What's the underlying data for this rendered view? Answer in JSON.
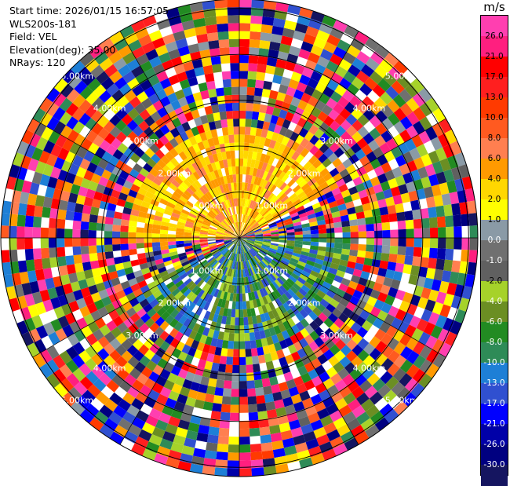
{
  "info": {
    "start_time": "Start time: 2026/01/15 16:57:05",
    "instrument": "WLS200s-181",
    "field": "Field: VEL",
    "elevation": "Elevation(deg): 35.00",
    "nrays": "NRays: 120"
  },
  "colorbar": {
    "unit": "m/s",
    "ticks": [
      "26.0",
      "21.0",
      "17.0",
      "13.0",
      "10.0",
      "8.0",
      "6.0",
      "4.0",
      "2.0",
      "1.0",
      "0.0",
      "-1.0",
      "-2.0",
      "-4.0",
      "-6.0",
      "-8.0",
      "-10.0",
      "-13.0",
      "-17.0",
      "-21.0",
      "-26.0",
      "-30.0"
    ],
    "colors": [
      "#ff3fb0",
      "#ff1f7f",
      "#ff0000",
      "#ff1f1f",
      "#ff3a00",
      "#ff5a20",
      "#ff7f50",
      "#ff9a00",
      "#ffd700",
      "#ffff00",
      "#8a9aa6",
      "#707070",
      "#606060",
      "#a6d22a",
      "#6b8e23",
      "#228b22",
      "#2e8b57",
      "#1e7fd6",
      "#3050d0",
      "#0000ff",
      "#0000a8",
      "#000080",
      "#151560"
    ]
  },
  "chart_data": {
    "type": "heatmap",
    "subtype": "radar-ppi",
    "field": "VEL",
    "units": "m/s",
    "elevation_deg": 35.0,
    "nrays": 120,
    "range_rings_km": [
      1.0,
      2.0,
      3.0,
      4.0,
      5.0
    ],
    "range_labels": [
      "1.00km",
      "2.00km",
      "3.00km",
      "4.00km",
      "5.00km"
    ],
    "color_levels": [
      26.0,
      21.0,
      17.0,
      13.0,
      10.0,
      8.0,
      6.0,
      4.0,
      2.0,
      1.0,
      0.0,
      -1.0,
      -2.0,
      -4.0,
      -6.0,
      -8.0,
      -10.0,
      -13.0,
      -17.0,
      -21.0,
      -26.0,
      -30.0
    ],
    "vmin": -30.0,
    "vmax": 30.0,
    "grid": true
  }
}
